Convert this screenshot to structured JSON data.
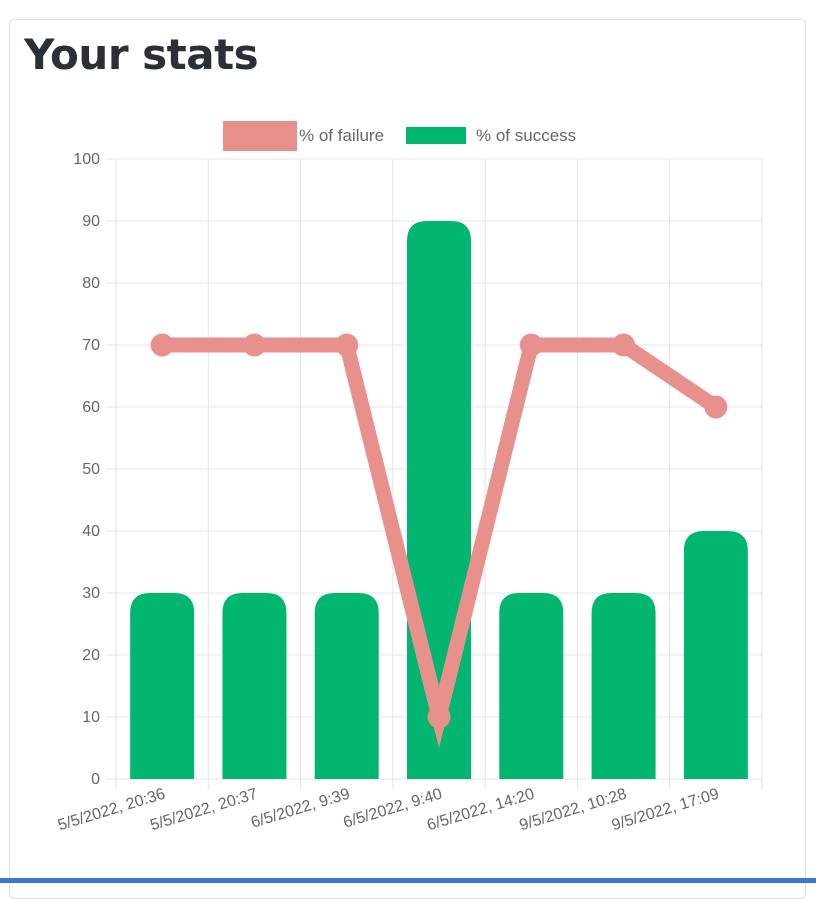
{
  "page": {
    "title": "Your stats"
  },
  "chart_data": {
    "type": "bar",
    "categories": [
      "5/5/2022, 20:36",
      "5/5/2022, 20:37",
      "6/5/2022, 9:39",
      "6/5/2022, 9:40",
      "6/5/2022, 14:20",
      "9/5/2022, 10:28",
      "9/5/2022, 17:09"
    ],
    "series": [
      {
        "name": "% of failure",
        "type": "line",
        "color": "#e8908c",
        "values": [
          70,
          70,
          70,
          10,
          70,
          70,
          60
        ]
      },
      {
        "name": "% of success",
        "type": "bar",
        "color": "#02b672",
        "values": [
          30,
          30,
          30,
          90,
          30,
          30,
          40
        ]
      }
    ],
    "yticks": [
      0,
      10,
      20,
      30,
      40,
      50,
      60,
      70,
      80,
      90,
      100
    ],
    "ylim": [
      0,
      100
    ],
    "grid": true,
    "legend": "top"
  }
}
